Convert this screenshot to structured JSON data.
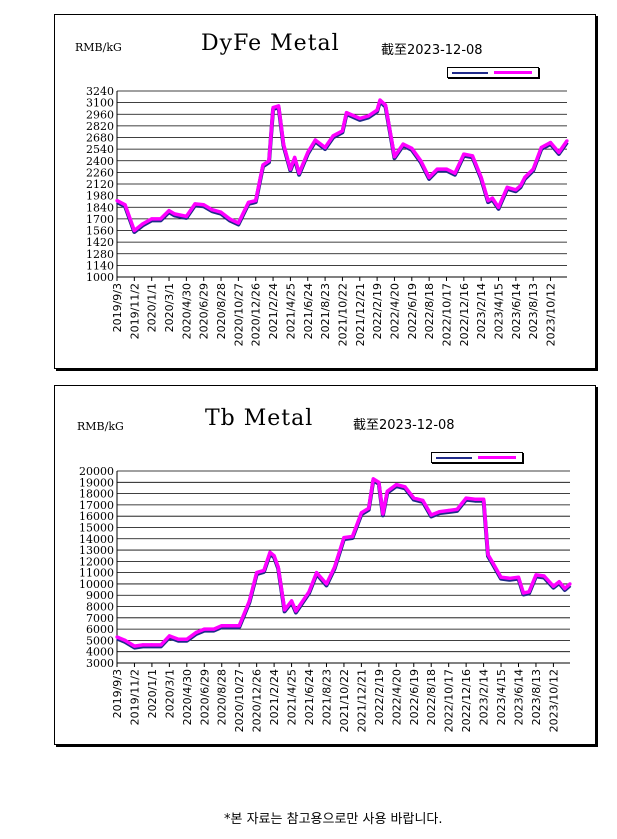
{
  "charts": [
    {
      "unit": "RMB/kG",
      "title": "DyFe Metal",
      "as_of": "截至2023-12-08"
    },
    {
      "unit": "RMB/kG",
      "title": "Tb Metal",
      "as_of": "截至2023-12-08"
    }
  ],
  "footnote": "*본 자료는 참고용으로만 사용 바랍니다.",
  "colors": {
    "series_low": "#1f2a8a",
    "series_high": "#ff00ff"
  },
  "chart_data": [
    {
      "type": "line",
      "title": "DyFe Metal",
      "ylabel": "RMB/kG",
      "ylim": [
        1000,
        3240
      ],
      "yticks": [
        1000,
        1140,
        1280,
        1420,
        1560,
        1700,
        1840,
        1980,
        2120,
        2260,
        2400,
        2540,
        2680,
        2820,
        2960,
        3100,
        3240
      ],
      "grid": true,
      "legend": "top-right",
      "xticks": [
        "2019/9/3",
        "2019/11/2",
        "2020/1/1",
        "2020/3/1",
        "2020/4/30",
        "2020/6/29",
        "2020/8/28",
        "2020/10/27",
        "2020/12/26",
        "2021/2/24",
        "2021/4/25",
        "2021/6/24",
        "2021/8/23",
        "2021/10/22",
        "2021/12/21",
        "2022/2/19",
        "2022/4/20",
        "2022/6/19",
        "2022/8/18",
        "2022/10/17",
        "2022/12/16",
        "2023/2/14",
        "2023/4/15",
        "2023/6/14",
        "2023/8/13",
        "2023/10/12"
      ],
      "x": [
        "2019/9/3",
        "2019/10/1",
        "2019/11/2",
        "2019/12/1",
        "2020/1/1",
        "2020/2/1",
        "2020/3/1",
        "2020/3/20",
        "2020/4/30",
        "2020/5/30",
        "2020/6/29",
        "2020/7/28",
        "2020/8/28",
        "2020/9/27",
        "2020/10/27",
        "2020/12/1",
        "2020/12/26",
        "2021/1/20",
        "2021/2/10",
        "2021/2/24",
        "2021/3/15",
        "2021/4/1",
        "2021/4/25",
        "2021/5/10",
        "2021/5/25",
        "2021/6/24",
        "2021/7/20",
        "2021/8/23",
        "2021/9/20",
        "2021/10/22",
        "2021/11/5",
        "2021/12/21",
        "2022/1/20",
        "2022/2/19",
        "2022/3/1",
        "2022/3/20",
        "2022/4/20",
        "2022/5/20",
        "2022/6/19",
        "2022/7/20",
        "2022/8/18",
        "2022/9/15",
        "2022/10/17",
        "2022/11/15",
        "2022/12/16",
        "2023/1/15",
        "2023/2/14",
        "2023/3/10",
        "2023/3/25",
        "2023/4/15",
        "2023/5/15",
        "2023/6/14",
        "2023/6/30",
        "2023/7/15",
        "2023/8/13",
        "2023/9/10",
        "2023/10/12",
        "2023/11/10",
        "2023/12/8"
      ],
      "series": [
        {
          "values": [
            1920,
            1870,
            1560,
            1640,
            1700,
            1700,
            1800,
            1760,
            1730,
            1880,
            1870,
            1810,
            1780,
            1700,
            1650,
            1900,
            1920,
            2350,
            2400,
            3040,
            3060,
            2600,
            2300,
            2440,
            2250,
            2500,
            2650,
            2560,
            2700,
            2760,
            2980,
            2910,
            2940,
            3010,
            3130,
            3070,
            2450,
            2600,
            2550,
            2400,
            2200,
            2300,
            2300,
            2250,
            2480,
            2460,
            2200,
            1920,
            1950,
            1840,
            2080,
            2050,
            2100,
            2200,
            2300,
            2560,
            2620,
            2500,
            2640
          ]
        }
      ]
    },
    {
      "type": "line",
      "title": "Tb Metal",
      "ylabel": "RMB/kG",
      "ylim": [
        3000,
        20000
      ],
      "yticks": [
        3000,
        4000,
        5000,
        6000,
        7000,
        8000,
        9000,
        10000,
        11000,
        12000,
        13000,
        14000,
        15000,
        16000,
        17000,
        18000,
        19000,
        20000
      ],
      "grid": true,
      "legend": "top-right",
      "xticks": [
        "2019/9/3",
        "2019/11/2",
        "2020/1/1",
        "2020/3/1",
        "2020/4/30",
        "2020/6/29",
        "2020/8/28",
        "2020/10/27",
        "2020/12/26",
        "2021/2/24",
        "2021/4/25",
        "2021/6/24",
        "2021/8/23",
        "2021/10/22",
        "2021/12/21",
        "2022/2/19",
        "2022/4/20",
        "2022/6/19",
        "2022/8/18",
        "2022/10/17",
        "2022/12/16",
        "2023/2/14",
        "2023/4/15",
        "2023/6/14",
        "2023/8/13",
        "2023/10/12"
      ],
      "x": [
        "2019/9/3",
        "2019/10/1",
        "2019/11/2",
        "2019/12/1",
        "2020/1/1",
        "2020/2/1",
        "2020/3/1",
        "2020/4/1",
        "2020/4/30",
        "2020/6/1",
        "2020/6/29",
        "2020/8/1",
        "2020/8/28",
        "2020/10/27",
        "2020/12/1",
        "2020/12/26",
        "2021/1/20",
        "2021/2/10",
        "2021/2/24",
        "2021/3/10",
        "2021/4/1",
        "2021/4/25",
        "2021/5/10",
        "2021/6/24",
        "2021/7/20",
        "2021/8/23",
        "2021/9/20",
        "2021/10/22",
        "2021/11/20",
        "2021/12/21",
        "2022/1/15",
        "2022/1/31",
        "2022/2/19",
        "2022/3/5",
        "2022/3/20",
        "2022/4/20",
        "2022/5/20",
        "2022/6/19",
        "2022/7/20",
        "2022/8/18",
        "2022/9/15",
        "2022/10/17",
        "2022/11/15",
        "2022/12/16",
        "2023/1/15",
        "2023/2/14",
        "2023/3/1",
        "2023/3/15",
        "2023/4/15",
        "2023/5/15",
        "2023/6/14",
        "2023/7/1",
        "2023/7/20",
        "2023/8/13",
        "2023/9/10",
        "2023/10/12",
        "2023/11/1",
        "2023/11/20",
        "2023/12/8"
      ],
      "series": [
        {
          "values": [
            5300,
            5000,
            4500,
            4600,
            4600,
            4600,
            5400,
            5100,
            5100,
            5700,
            6000,
            6000,
            6300,
            6300,
            8500,
            11000,
            11200,
            12800,
            12500,
            11500,
            7700,
            8500,
            7600,
            9300,
            11000,
            10000,
            11500,
            14100,
            14200,
            16300,
            16700,
            19300,
            19000,
            16200,
            18200,
            18800,
            18600,
            17600,
            17400,
            16100,
            16400,
            16500,
            16600,
            17600,
            17500,
            17500,
            12600,
            12000,
            10600,
            10500,
            10600,
            9200,
            9300,
            10800,
            10700,
            9800,
            10200,
            9600,
            10000
          ]
        }
      ]
    }
  ]
}
